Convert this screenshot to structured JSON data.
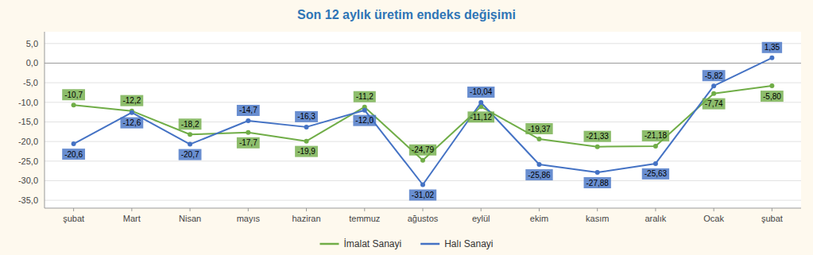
{
  "chart_data": {
    "type": "line",
    "title": "Son 12 aylık üretim endeks değişimi",
    "categories": [
      "şubat",
      "Mart",
      "Nisan",
      "mayıs",
      "haziran",
      "temmuz",
      "ağustos",
      "eylül",
      "ekim",
      "kasım",
      "aralık",
      "Ocak",
      "şubat"
    ],
    "series": [
      {
        "name": "İmalat Sanayi",
        "color": "#70ad47",
        "values": [
          -10.7,
          -12.2,
          -18.2,
          -17.7,
          -19.9,
          -11.2,
          -24.79,
          -11.12,
          -19.37,
          -21.33,
          -21.18,
          -7.74,
          -5.8
        ],
        "value_labels": [
          "-10,7",
          "-12,2",
          "-18,2",
          "-17,7",
          "-19,9",
          "-11,2",
          "-24,79",
          "-11,12",
          "-19,37",
          "-21,33",
          "-21,18",
          "-7,74",
          "-5,80"
        ]
      },
      {
        "name": "Halı Sanayi",
        "color": "#4472c4",
        "values": [
          -20.6,
          -12.6,
          -20.7,
          -14.7,
          -16.3,
          -12.0,
          -31.02,
          -10.04,
          -25.86,
          -27.88,
          -25.63,
          -5.82,
          1.35
        ],
        "value_labels": [
          "-20,6",
          "-12,6",
          "-20,7",
          "-14,7",
          "-16,3",
          "-12,0",
          "-31,02",
          "-10,04",
          "-25,86",
          "-27,88",
          "-25,63",
          "-5,82",
          "1,35"
        ]
      }
    ],
    "ylim": [
      -37,
      8
    ],
    "yticks": [
      {
        "value": 5.0,
        "label": "5,0"
      },
      {
        "value": 0.0,
        "label": "0,0"
      },
      {
        "value": -5.0,
        "label": "-5,0"
      },
      {
        "value": -10.0,
        "label": "-10,0"
      },
      {
        "value": -15.0,
        "label": "-15,0"
      },
      {
        "value": -20.0,
        "label": "-20,0"
      },
      {
        "value": -25.0,
        "label": "-25,0"
      },
      {
        "value": -30.0,
        "label": "-30,0"
      },
      {
        "value": -35.0,
        "label": "-35,0"
      }
    ],
    "grid": true,
    "legend": "bottom",
    "data_labels": true,
    "marker": "circle"
  }
}
